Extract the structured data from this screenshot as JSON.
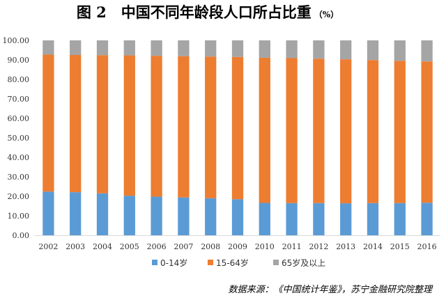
{
  "chart_data": {
    "type": "bar",
    "stacked": true,
    "title": "图 2　中国不同年龄段人口所占比重",
    "title_unit": "（%）",
    "categories": [
      "2002",
      "2003",
      "2004",
      "2005",
      "2006",
      "2007",
      "2008",
      "2009",
      "2010",
      "2011",
      "2012",
      "2013",
      "2014",
      "2015",
      "2016"
    ],
    "series": [
      {
        "name": "0-14岁",
        "color": "#5b9bd5",
        "values": [
          22.4,
          22.1,
          21.5,
          20.3,
          19.8,
          19.4,
          19.0,
          18.5,
          16.6,
          16.5,
          16.5,
          16.4,
          16.5,
          16.5,
          16.7
        ]
      },
      {
        "name": "15-64岁",
        "color": "#ed7d31",
        "values": [
          70.3,
          70.4,
          70.9,
          72.0,
          72.3,
          72.5,
          72.7,
          73.0,
          74.5,
          74.4,
          74.1,
          73.9,
          73.4,
          73.0,
          72.5
        ]
      },
      {
        "name": "65岁及以上",
        "color": "#a5a5a5",
        "values": [
          7.3,
          7.5,
          7.6,
          7.7,
          7.9,
          8.1,
          8.3,
          8.5,
          8.9,
          9.1,
          9.4,
          9.7,
          10.1,
          10.5,
          10.8
        ]
      }
    ],
    "ylim": [
      0,
      100
    ],
    "yticks": [
      "0.00",
      "10.00",
      "20.00",
      "30.00",
      "40.00",
      "50.00",
      "60.00",
      "70.00",
      "80.00",
      "90.00",
      "100.00"
    ],
    "legend_position": "bottom",
    "grid": false,
    "source": "数据来源：《中国统计年鉴》，苏宁金融研究院整理"
  }
}
